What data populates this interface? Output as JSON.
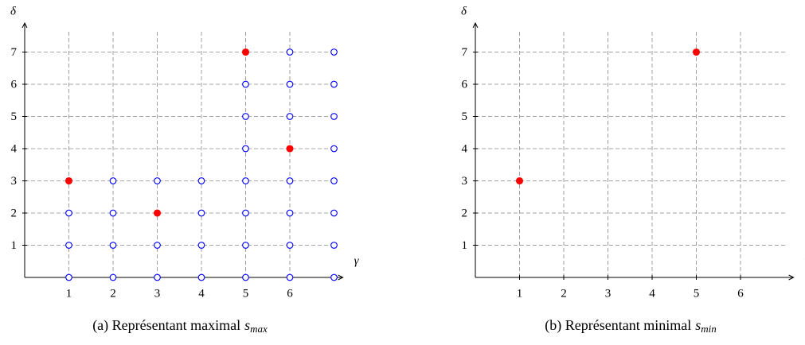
{
  "chart_data": [
    {
      "type": "scatter",
      "xlabel": "γ",
      "ylabel": "δ",
      "xlim": [
        0,
        7.2
      ],
      "ylim": [
        0,
        7.9
      ],
      "xticks": [
        1,
        2,
        3,
        4,
        5,
        6
      ],
      "yticks": [
        1,
        2,
        3,
        4,
        5,
        6,
        7
      ],
      "grid": true,
      "caption": "(a) Représentant maximal",
      "caption_symbol": "s",
      "caption_subscript": "max",
      "series": [
        {
          "color": "#0000ff",
          "marker": "open",
          "x": [
            1,
            2,
            3,
            4,
            5,
            6,
            7,
            1,
            2,
            3,
            4,
            5,
            6,
            7,
            1,
            2,
            4,
            5,
            6,
            7,
            2,
            3,
            4,
            5,
            6,
            7,
            5,
            7,
            5,
            6,
            7,
            5,
            6,
            7,
            6,
            7
          ],
          "values": [
            0,
            0,
            0,
            0,
            0,
            0,
            0,
            1,
            1,
            1,
            1,
            1,
            1,
            1,
            2,
            2,
            2,
            2,
            2,
            2,
            3,
            3,
            3,
            3,
            3,
            3,
            4,
            4,
            5,
            5,
            5,
            6,
            6,
            6,
            7,
            7
          ]
        },
        {
          "color": "#ff0000",
          "marker": "filled",
          "x": [
            1,
            3,
            6,
            5
          ],
          "values": [
            3,
            2,
            4,
            7
          ]
        }
      ]
    },
    {
      "type": "scatter",
      "xlabel": "γ",
      "ylabel": "δ",
      "xlim": [
        0,
        7.2
      ],
      "ylim": [
        0,
        7.9
      ],
      "xticks": [
        1,
        2,
        3,
        4,
        5,
        6
      ],
      "yticks": [
        1,
        2,
        3,
        4,
        5,
        6,
        7
      ],
      "grid": true,
      "caption": "(b) Représentant minimal",
      "caption_symbol": "s",
      "caption_subscript": "min",
      "series": [
        {
          "color": "#ff0000",
          "marker": "filled",
          "x": [
            1,
            5
          ],
          "values": [
            3,
            7
          ]
        }
      ]
    }
  ]
}
